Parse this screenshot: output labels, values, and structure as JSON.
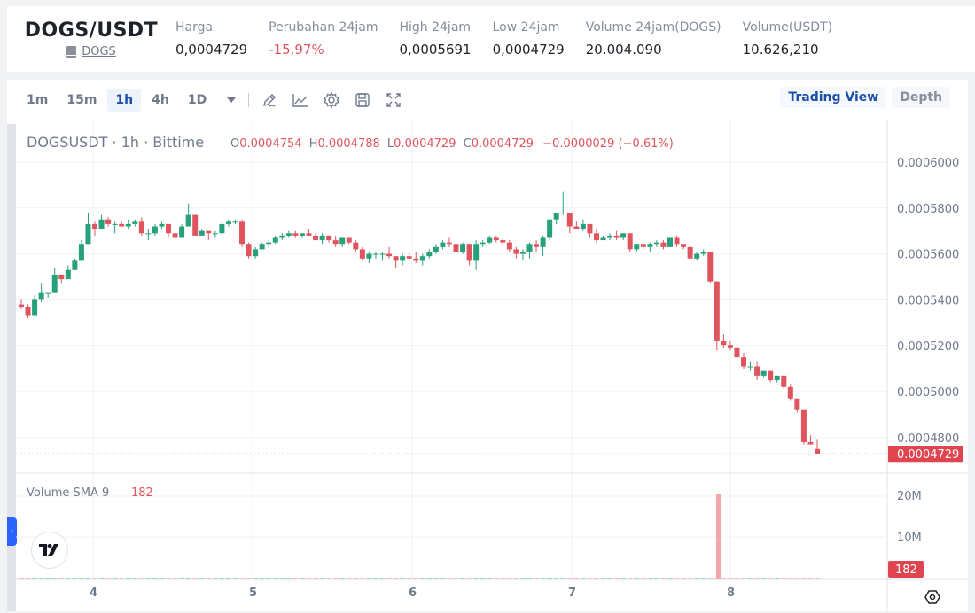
{
  "ticker": {
    "pair": "DOGS/USDT",
    "coin_link": "DOGS",
    "stats": [
      {
        "label": "Harga",
        "value": "0,0004729",
        "negative": false
      },
      {
        "label": "Perubahan 24jam",
        "value": "-15.97%",
        "negative": true
      },
      {
        "label": "High 24jam",
        "value": "0,0005691",
        "negative": false
      },
      {
        "label": "Low 24jam",
        "value": "0,0004729",
        "negative": false
      },
      {
        "label": "Volume 24jam(DOGS)",
        "value": "20.004.090",
        "negative": false
      },
      {
        "label": "Volume(USDT)",
        "value": "10.626,210",
        "negative": false
      }
    ]
  },
  "toolbar": {
    "timeframes": [
      "1m",
      "15m",
      "1h",
      "4h",
      "1D"
    ],
    "active_timeframe": "1h",
    "icons": [
      "drawing-icon",
      "indicator-icon",
      "settings-icon",
      "save-icon",
      "fullscreen-icon"
    ],
    "views": [
      "Trading View",
      "Depth"
    ],
    "active_view": "Trading View"
  },
  "legend": {
    "symbol": "DOGSUSDT · 1h · Bittime",
    "o_label": "O",
    "o_value": "0.0004754",
    "h_label": "H",
    "h_value": "0.0004788",
    "l_label": "L",
    "l_value": "0.0004729",
    "c_label": "C",
    "c_value": "0.0004729",
    "change": "−0.0000029 (−0.61%)"
  },
  "volume_legend": {
    "label": "Volume SMA 9",
    "value": "182"
  },
  "colors": {
    "up": "#26a17b",
    "down": "#e0555d",
    "accent": "#1b4fa8",
    "volume_down": "#f4a6ad"
  },
  "chart_data": {
    "type": "candlestick",
    "title": "DOGSUSDT · 1h · Bittime",
    "price_axis": {
      "ticks": [
        "0.0006000",
        "0.0005800",
        "0.0005600",
        "0.0005400",
        "0.0005200",
        "0.0005000",
        "0.0004800"
      ],
      "last_price_label": "0.0004729",
      "range": [
        0.00047,
        0.000605
      ]
    },
    "volume_axis": {
      "ticks": [
        "20M",
        "10M"
      ],
      "last_value_label": "182"
    },
    "x_axis": {
      "ticks": [
        "4",
        "5",
        "6",
        "7",
        "8"
      ]
    },
    "candles_approx": [
      [
        0.000538,
        0.00054,
        0.000536,
        0.000537
      ],
      [
        0.000537,
        0.000538,
        0.000532,
        0.000533
      ],
      [
        0.000533,
        0.000542,
        0.000533,
        0.00054
      ],
      [
        0.00054,
        0.000547,
        0.000539,
        0.000543
      ],
      [
        0.000543,
        0.000543,
        0.000541,
        0.000543
      ],
      [
        0.000543,
        0.000554,
        0.000543,
        0.000551
      ],
      [
        0.000551,
        0.000551,
        0.000547,
        0.000549
      ],
      [
        0.000549,
        0.000555,
        0.000549,
        0.000553
      ],
      [
        0.000553,
        0.000558,
        0.000553,
        0.000557
      ],
      [
        0.000557,
        0.000566,
        0.000557,
        0.000564
      ],
      [
        0.000564,
        0.000578,
        0.000564,
        0.000573
      ],
      [
        0.000573,
        0.000574,
        0.000568,
        0.000571
      ],
      [
        0.000571,
        0.000577,
        0.000571,
        0.000575
      ],
      [
        0.000575,
        0.000576,
        0.000572,
        0.000573
      ],
      [
        0.000573,
        0.000574,
        0.000569,
        0.000573
      ],
      [
        0.000573,
        0.000574,
        0.000572,
        0.000572
      ],
      [
        0.000572,
        0.000575,
        0.000571,
        0.000573
      ],
      [
        0.000573,
        0.000575,
        0.000572,
        0.000574
      ],
      [
        0.000574,
        0.000576,
        0.000568,
        0.000569
      ],
      [
        0.000569,
        0.000571,
        0.000566,
        0.000569
      ],
      [
        0.000569,
        0.000573,
        0.000568,
        0.000572
      ],
      [
        0.000572,
        0.000574,
        0.000571,
        0.000573
      ],
      [
        0.000573,
        0.000573,
        0.000567,
        0.000569
      ],
      [
        0.000569,
        0.00057,
        0.000566,
        0.000567
      ],
      [
        0.000567,
        0.000573,
        0.000567,
        0.000572
      ],
      [
        0.000572,
        0.000582,
        0.000572,
        0.000577
      ],
      [
        0.000577,
        0.000577,
        0.000568,
        0.000568
      ],
      [
        0.000568,
        0.000571,
        0.000568,
        0.00057
      ],
      [
        0.00057,
        0.00057,
        0.000566,
        0.000569
      ],
      [
        0.000569,
        0.00057,
        0.000567,
        0.000569
      ],
      [
        0.000569,
        0.000574,
        0.000568,
        0.000573
      ],
      [
        0.000573,
        0.000575,
        0.000572,
        0.000574
      ],
      [
        0.000574,
        0.000575,
        0.000573,
        0.000574
      ],
      [
        0.000574,
        0.000575,
        0.000563,
        0.000564
      ],
      [
        0.000564,
        0.000565,
        0.000558,
        0.000559
      ],
      [
        0.000559,
        0.000563,
        0.000558,
        0.000562
      ],
      [
        0.000562,
        0.000565,
        0.000562,
        0.000564
      ],
      [
        0.000564,
        0.000566,
        0.000563,
        0.000565
      ],
      [
        0.000565,
        0.000568,
        0.000564,
        0.000567
      ],
      [
        0.000567,
        0.000569,
        0.000566,
        0.000568
      ],
      [
        0.000568,
        0.00057,
        0.000567,
        0.000569
      ],
      [
        0.000569,
        0.00057,
        0.000567,
        0.000568
      ],
      [
        0.000568,
        0.000569,
        0.000567,
        0.000569
      ],
      [
        0.000569,
        0.000571,
        0.000568,
        0.000568
      ],
      [
        0.000568,
        0.000569,
        0.000566,
        0.000566
      ],
      [
        0.000566,
        0.000569,
        0.000564,
        0.000568
      ],
      [
        0.000568,
        0.000568,
        0.000565,
        0.000566
      ],
      [
        0.000566,
        0.000568,
        0.000563,
        0.000564
      ],
      [
        0.000564,
        0.000567,
        0.000563,
        0.000567
      ],
      [
        0.000567,
        0.000567,
        0.000564,
        0.000565
      ],
      [
        0.000565,
        0.000566,
        0.000561,
        0.000562
      ],
      [
        0.000562,
        0.000563,
        0.000557,
        0.000558
      ],
      [
        0.000558,
        0.000561,
        0.000556,
        0.00056
      ],
      [
        0.00056,
        0.000561,
        0.000558,
        0.00056
      ],
      [
        0.00056,
        0.000561,
        0.000557,
        0.00056
      ],
      [
        0.00056,
        0.000563,
        0.000558,
        0.000559
      ],
      [
        0.000559,
        0.000559,
        0.000554,
        0.000557
      ],
      [
        0.000557,
        0.00056,
        0.000555,
        0.000559
      ],
      [
        0.000559,
        0.000561,
        0.000557,
        0.000558
      ],
      [
        0.000558,
        0.000561,
        0.000556,
        0.000557
      ],
      [
        0.000557,
        0.00056,
        0.000555,
        0.000559
      ],
      [
        0.000559,
        0.000562,
        0.000558,
        0.000561
      ],
      [
        0.000561,
        0.000564,
        0.00056,
        0.000563
      ],
      [
        0.000563,
        0.000566,
        0.000562,
        0.000565
      ],
      [
        0.000565,
        0.000567,
        0.000563,
        0.000564
      ],
      [
        0.000564,
        0.000565,
        0.000561,
        0.000561
      ],
      [
        0.000561,
        0.000565,
        0.00056,
        0.000564
      ],
      [
        0.000564,
        0.000564,
        0.000555,
        0.000557
      ],
      [
        0.000557,
        0.000566,
        0.000553,
        0.000564
      ],
      [
        0.000564,
        0.000566,
        0.000563,
        0.000565
      ],
      [
        0.000565,
        0.000568,
        0.000564,
        0.000567
      ],
      [
        0.000567,
        0.000568,
        0.000565,
        0.000566
      ],
      [
        0.000566,
        0.000567,
        0.000563,
        0.000565
      ],
      [
        0.000565,
        0.000566,
        0.000561,
        0.000562
      ],
      [
        0.000562,
        0.000563,
        0.000558,
        0.00056
      ],
      [
        0.00056,
        0.000562,
        0.000557,
        0.000561
      ],
      [
        0.000561,
        0.000565,
        0.000558,
        0.000564
      ],
      [
        0.000564,
        0.000566,
        0.000561,
        0.000563
      ],
      [
        0.000563,
        0.000568,
        0.000559,
        0.000567
      ],
      [
        0.000567,
        0.000573,
        0.000566,
        0.000575
      ],
      [
        0.000575,
        0.000577,
        0.000573,
        0.000578
      ],
      [
        0.000578,
        0.000587,
        0.000577,
        0.000578
      ],
      [
        0.000578,
        0.000578,
        0.000569,
        0.000572
      ],
      [
        0.000572,
        0.000574,
        0.000571,
        0.000571
      ],
      [
        0.000571,
        0.000575,
        0.00057,
        0.000573
      ],
      [
        0.000573,
        0.000573,
        0.000567,
        0.000569
      ],
      [
        0.000569,
        0.000571,
        0.000565,
        0.000566
      ],
      [
        0.000566,
        0.000568,
        0.000566,
        0.000567
      ],
      [
        0.000567,
        0.000569,
        0.000566,
        0.000568
      ],
      [
        0.000568,
        0.00057,
        0.000566,
        0.000567
      ],
      [
        0.000567,
        0.000569,
        0.000566,
        0.000569
      ],
      [
        0.000569,
        0.000569,
        0.000561,
        0.000562
      ],
      [
        0.000562,
        0.000564,
        0.000561,
        0.000564
      ],
      [
        0.000564,
        0.000564,
        0.000562,
        0.000563
      ],
      [
        0.000563,
        0.000565,
        0.000561,
        0.000564
      ],
      [
        0.000564,
        0.000566,
        0.000563,
        0.000565
      ],
      [
        0.000565,
        0.000566,
        0.000562,
        0.000563
      ],
      [
        0.000563,
        0.000567,
        0.000563,
        0.000567
      ],
      [
        0.000567,
        0.000568,
        0.000563,
        0.000564
      ],
      [
        0.000564,
        0.000564,
        0.000562,
        0.000563
      ],
      [
        0.000563,
        0.000564,
        0.000557,
        0.000558
      ],
      [
        0.000558,
        0.000561,
        0.000557,
        0.00056
      ],
      [
        0.00056,
        0.000562,
        0.000559,
        0.000561
      ],
      [
        0.000561,
        0.000561,
        0.000547,
        0.000548
      ],
      [
        0.000548,
        0.000548,
        0.000518,
        0.000522
      ],
      [
        0.000522,
        0.000525,
        0.000519,
        0.00052
      ],
      [
        0.00052,
        0.000522,
        0.000518,
        0.000519
      ],
      [
        0.000519,
        0.000521,
        0.000514,
        0.000515
      ],
      [
        0.000515,
        0.000517,
        0.00051,
        0.000511
      ],
      [
        0.000511,
        0.000513,
        0.000509,
        0.000511
      ],
      [
        0.000511,
        0.000513,
        0.000505,
        0.000507
      ],
      [
        0.000507,
        0.000509,
        0.000506,
        0.000509
      ],
      [
        0.000509,
        0.000509,
        0.000504,
        0.000505
      ],
      [
        0.000505,
        0.000507,
        0.000504,
        0.000507
      ],
      [
        0.000507,
        0.000507,
        0.000501,
        0.000502
      ],
      [
        0.000502,
        0.000503,
        0.000496,
        0.000497
      ],
      [
        0.000497,
        0.000497,
        0.000491,
        0.000492
      ],
      [
        0.000492,
        0.000492,
        0.000477,
        0.000478
      ],
      [
        0.000478,
        0.000481,
        0.000477,
        0.000477
      ],
      [
        0.000475,
        0.000479,
        0.000473,
        0.000473
      ]
    ],
    "volume_spike": {
      "x_label": "8",
      "value_approx": "20M",
      "direction": "down"
    }
  }
}
